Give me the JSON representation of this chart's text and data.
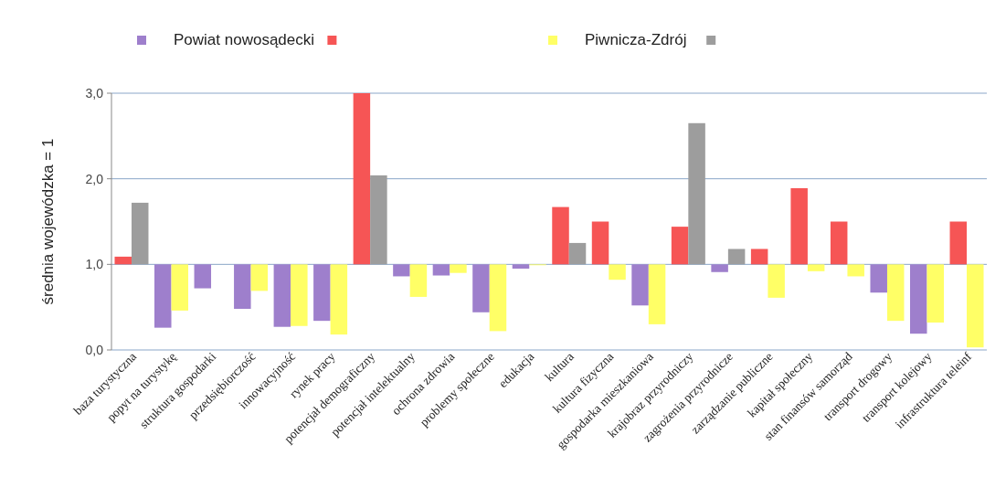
{
  "chart_data": {
    "type": "bar",
    "ylabel": "średnia wojewódzka  = 1",
    "categories": [
      "baza turystyczna",
      "popyt na turystykę",
      "struktura gospodarki",
      "przedsiębiorczość",
      "innowacyjność",
      "rynek pracy",
      "potencjał demograficzny",
      "potencjał intelektualny",
      "ochrona zdrowia",
      "problemy społeczne",
      "edukacja",
      "kultura",
      "kultura fizyczna",
      "gospodarka mieszkaniowa",
      "krajobraz przyrodniczy",
      "zagrożenia przyrodnicze",
      "zarządzanie publiczne",
      "kapitał społeczny",
      "stan finansów samorząd",
      "transport drogowy",
      "transport kolejowy",
      "infrastruktura teleinf"
    ],
    "series": [
      {
        "name": "Powiat nowosądecki",
        "color": "#9e7fcc",
        "base": [
          1,
          1,
          1,
          1,
          1,
          1,
          1,
          1,
          1,
          1,
          1,
          1,
          1,
          1,
          1,
          1,
          1,
          1,
          1,
          1,
          1,
          1
        ],
        "values": [
          0.09,
          -0.74,
          -0.28,
          -0.52,
          -0.73,
          -0.66,
          2.0,
          -0.14,
          -0.13,
          -0.56,
          -0.05,
          0.67,
          0.5,
          -0.48,
          0.44,
          -0.09,
          0.18,
          0.89,
          0.5,
          -0.33,
          -0.81,
          0.5
        ],
        "colors": [
          "#f65555",
          "#9e7fcc",
          "#9e7fcc",
          "#9e7fcc",
          "#9e7fcc",
          "#9e7fcc",
          "#f65555",
          "#9e7fcc",
          "#9e7fcc",
          "#9e7fcc",
          "#9e7fcc",
          "#f65555",
          "#f65555",
          "#9e7fcc",
          "#f65555",
          "#9e7fcc",
          "#f65555",
          "#f65555",
          "#f65555",
          "#9e7fcc",
          "#9e7fcc",
          "#f65555"
        ]
      },
      {
        "name": "Piwnicza-Zdrój",
        "color": "#ffff66",
        "base": [
          1,
          1,
          1,
          1,
          1,
          1,
          1,
          1,
          1,
          1,
          1,
          1,
          1,
          1,
          1,
          1,
          1,
          1,
          1,
          1,
          1,
          1
        ],
        "values": [
          0.72,
          -0.54,
          0,
          -0.31,
          -0.72,
          -0.82,
          1.04,
          -0.38,
          -0.1,
          -0.78,
          -0.01,
          0.25,
          -0.18,
          -0.7,
          1.65,
          0.18,
          -0.39,
          -0.08,
          -0.14,
          -0.66,
          -0.68,
          -0.97
        ],
        "colors": [
          "#9d9d9d",
          "#ffff66",
          "#ffff66",
          "#ffff66",
          "#ffff66",
          "#ffff66",
          "#9d9d9d",
          "#ffff66",
          "#ffff66",
          "#ffff66",
          "#ffff66",
          "#9d9d9d",
          "#ffff66",
          "#ffff66",
          "#9d9d9d",
          "#9d9d9d",
          "#ffff66",
          "#ffff66",
          "#ffff66",
          "#ffff66",
          "#ffff66",
          "#ffff66"
        ]
      }
    ],
    "ylim": [
      0,
      3
    ],
    "yticks": [
      {
        "value": 0,
        "label": "0,0"
      },
      {
        "value": 1,
        "label": "1,0"
      },
      {
        "value": 2,
        "label": "2,0"
      },
      {
        "value": 3,
        "label": "3,0"
      }
    ],
    "grid": "y",
    "legend": "top"
  }
}
